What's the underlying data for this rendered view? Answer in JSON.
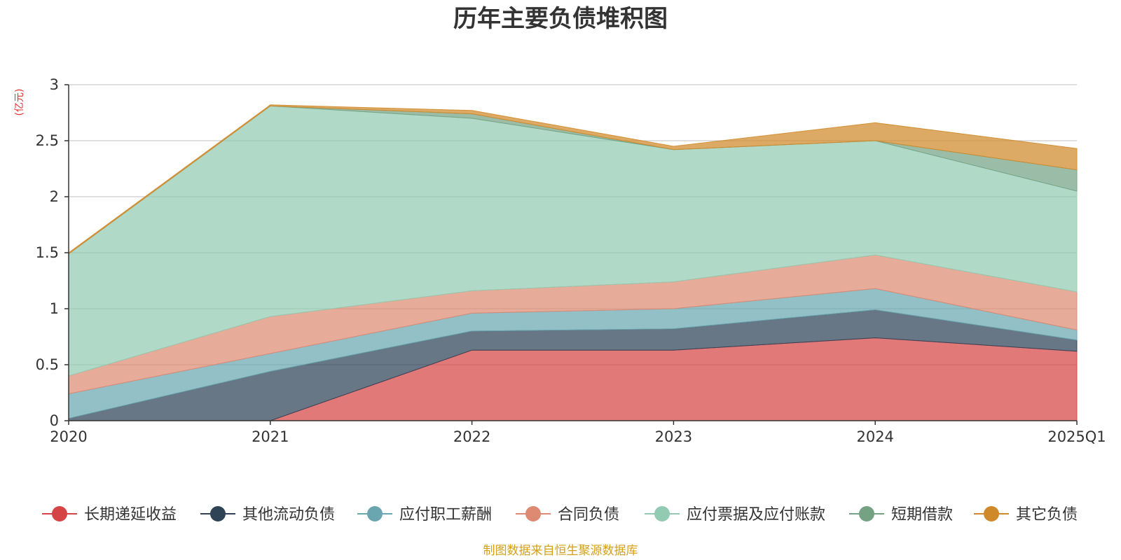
{
  "chart_data": {
    "type": "area",
    "stacked": true,
    "title": "历年主要负债堆积图",
    "ylabel": "(亿元)",
    "ylim": [
      0,
      3
    ],
    "yticks": [
      "0",
      "0.5",
      "1",
      "1.5",
      "2",
      "2.5",
      "3"
    ],
    "categories": [
      "2020",
      "2021",
      "2022",
      "2023",
      "2024",
      "2025Q1"
    ],
    "grid": true,
    "legend_position": "bottom",
    "series": [
      {
        "name": "长期递延收益",
        "color": "#d64545",
        "values": [
          0,
          0,
          0.63,
          0.63,
          0.74,
          0.62
        ]
      },
      {
        "name": "其他流动负债",
        "color": "#2e4356",
        "values": [
          0.02,
          0.44,
          0.17,
          0.19,
          0.25,
          0.1
        ]
      },
      {
        "name": "应付职工薪酬",
        "color": "#6aa6b0",
        "values": [
          0.22,
          0.16,
          0.16,
          0.18,
          0.19,
          0.09
        ]
      },
      {
        "name": "合同负债",
        "color": "#de8a72",
        "values": [
          0.16,
          0.33,
          0.2,
          0.24,
          0.3,
          0.34
        ]
      },
      {
        "name": "应付票据及应付账款",
        "color": "#93cbb2",
        "values": [
          1.09,
          1.88,
          1.54,
          1.18,
          1.02,
          0.9
        ]
      },
      {
        "name": "短期借款",
        "color": "#75a283",
        "values": [
          0,
          0,
          0.04,
          0,
          0,
          0.19
        ]
      },
      {
        "name": "其它负债",
        "color": "#d0892a",
        "values": [
          0.01,
          0.01,
          0.03,
          0.03,
          0.16,
          0.19
        ]
      }
    ],
    "source": "制图数据来自恒生聚源数据库"
  }
}
